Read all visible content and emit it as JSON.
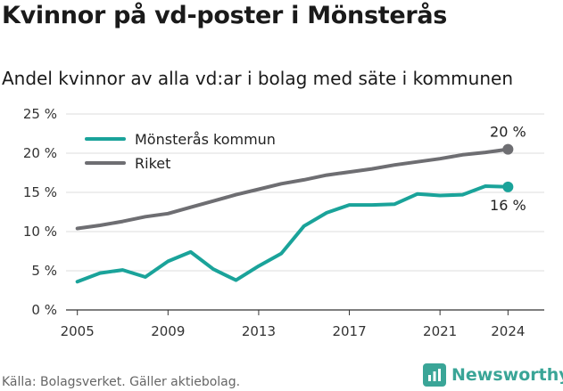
{
  "title": "Kvinnor på vd-poster i Mönsterås",
  "subtitle": "Andel kvinnor av alla vd:ar i bolag med säte i kommunen",
  "source": "Källa: Bolagsverket. Gäller aktiebolag.",
  "brand": {
    "name": "Newsworthy",
    "icon": "bar-chart-icon",
    "color": "#3aa597"
  },
  "chart_data": {
    "type": "line",
    "x": [
      2005,
      2006,
      2007,
      2008,
      2009,
      2010,
      2011,
      2012,
      2013,
      2014,
      2015,
      2016,
      2017,
      2018,
      2019,
      2020,
      2021,
      2022,
      2023,
      2024
    ],
    "x_ticks": [
      "2005",
      "2009",
      "2013",
      "2017",
      "2021",
      "2024"
    ],
    "y_ticks": [
      "0 %",
      "5 %",
      "10 %",
      "15 %",
      "20 %",
      "25 %"
    ],
    "ylim": [
      0,
      25
    ],
    "grid": true,
    "legend_position": "top-left",
    "series": [
      {
        "name": "Mönsterås kommun",
        "color": "#1aa39a",
        "end_label": "16 %",
        "values": [
          3.6,
          4.7,
          5.1,
          4.2,
          6.2,
          7.4,
          5.2,
          3.8,
          5.6,
          7.2,
          10.7,
          12.4,
          13.4,
          13.4,
          13.5,
          14.8,
          14.6,
          14.7,
          15.8,
          15.7
        ]
      },
      {
        "name": "Riket",
        "color": "#6e6e72",
        "end_label": "20 %",
        "values": [
          10.4,
          10.8,
          11.3,
          11.9,
          12.3,
          13.1,
          13.9,
          14.7,
          15.4,
          16.1,
          16.6,
          17.2,
          17.6,
          18.0,
          18.5,
          18.9,
          19.3,
          19.8,
          20.1,
          20.5
        ]
      }
    ]
  }
}
